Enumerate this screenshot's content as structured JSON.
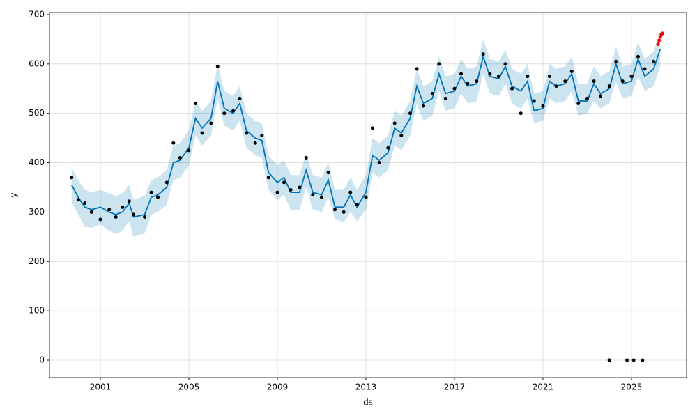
{
  "chart_data": {
    "type": "forecast",
    "xlabel": "ds",
    "ylabel": "y",
    "xlim": [
      1998.7,
      2027.49
    ],
    "ylim": [
      -35.3,
      704.2
    ],
    "xticks": [
      2001,
      2005,
      2009,
      2013,
      2017,
      2021,
      2025
    ],
    "yticks": [
      0,
      100,
      200,
      300,
      400,
      500,
      600,
      700
    ],
    "grid": true,
    "x": [
      1999.7,
      2000.0,
      2000.3,
      2000.6,
      2001.0,
      2001.4,
      2001.7,
      2002.0,
      2002.3,
      2002.5,
      2003.0,
      2003.3,
      2003.6,
      2004.0,
      2004.3,
      2004.6,
      2005.0,
      2005.3,
      2005.6,
      2006.0,
      2006.3,
      2006.6,
      2007.0,
      2007.3,
      2007.6,
      2008.0,
      2008.3,
      2008.6,
      2009.0,
      2009.3,
      2009.6,
      2010.0,
      2010.3,
      2010.6,
      2011.0,
      2011.3,
      2011.6,
      2012.0,
      2012.3,
      2012.6,
      2013.0,
      2013.3,
      2013.6,
      2014.0,
      2014.3,
      2014.6,
      2015.0,
      2015.3,
      2015.6,
      2016.0,
      2016.3,
      2016.6,
      2017.0,
      2017.3,
      2017.6,
      2018.0,
      2018.3,
      2018.6,
      2019.0,
      2019.3,
      2019.6,
      2020.0,
      2020.3,
      2020.6,
      2021.0,
      2021.3,
      2021.6,
      2022.0,
      2022.3,
      2022.6,
      2023.0,
      2023.3,
      2023.6,
      2024.0,
      2024.3,
      2024.6,
      2025.0,
      2025.3,
      2025.6,
      2026.0,
      2026.3
    ],
    "forecast": {
      "color": "#0072B2",
      "values": [
        355,
        330,
        310,
        305,
        310,
        300,
        295,
        300,
        318,
        290,
        295,
        330,
        335,
        350,
        400,
        405,
        430,
        490,
        470,
        490,
        565,
        510,
        500,
        520,
        465,
        450,
        445,
        380,
        360,
        370,
        340,
        340,
        385,
        340,
        335,
        365,
        310,
        310,
        335,
        310,
        340,
        415,
        405,
        420,
        470,
        460,
        490,
        555,
        520,
        530,
        580,
        540,
        545,
        575,
        555,
        560,
        615,
        575,
        570,
        595,
        555,
        545,
        565,
        505,
        510,
        565,
        555,
        560,
        580,
        525,
        525,
        560,
        540,
        550,
        600,
        560,
        565,
        610,
        575,
        590,
        630
      ]
    },
    "interval": {
      "color": "#0072B2",
      "lower": [
        320,
        295,
        270,
        268,
        275,
        262,
        255,
        262,
        282,
        250,
        257,
        295,
        300,
        315,
        365,
        370,
        395,
        455,
        435,
        455,
        530,
        475,
        465,
        485,
        430,
        415,
        410,
        345,
        325,
        335,
        305,
        305,
        350,
        305,
        300,
        330,
        285,
        280,
        300,
        282,
        305,
        380,
        370,
        385,
        435,
        425,
        455,
        520,
        485,
        495,
        545,
        505,
        510,
        540,
        520,
        525,
        580,
        540,
        535,
        560,
        520,
        510,
        530,
        480,
        485,
        530,
        520,
        525,
        545,
        495,
        500,
        525,
        510,
        520,
        565,
        530,
        535,
        575,
        545,
        555,
        595
      ],
      "upper": [
        390,
        365,
        345,
        340,
        345,
        338,
        332,
        338,
        355,
        325,
        333,
        365,
        370,
        385,
        435,
        440,
        465,
        525,
        505,
        525,
        600,
        545,
        535,
        555,
        500,
        485,
        480,
        415,
        395,
        405,
        375,
        375,
        420,
        375,
        370,
        400,
        345,
        345,
        370,
        345,
        375,
        450,
        440,
        455,
        505,
        495,
        525,
        590,
        555,
        565,
        615,
        575,
        580,
        610,
        590,
        595,
        650,
        610,
        605,
        630,
        590,
        580,
        600,
        540,
        545,
        600,
        590,
        595,
        615,
        560,
        560,
        595,
        575,
        585,
        635,
        595,
        600,
        645,
        610,
        625,
        665
      ]
    },
    "observed": {
      "color": "#000000",
      "x": [
        1999.7,
        2000.0,
        2000.3,
        2000.6,
        2001.0,
        2001.4,
        2001.7,
        2002.0,
        2002.3,
        2002.5,
        2003.0,
        2003.3,
        2003.6,
        2004.0,
        2004.3,
        2004.6,
        2005.0,
        2005.3,
        2005.6,
        2006.0,
        2006.3,
        2006.6,
        2007.0,
        2007.3,
        2007.6,
        2008.0,
        2008.3,
        2008.6,
        2009.0,
        2009.3,
        2009.6,
        2010.0,
        2010.3,
        2010.6,
        2011.0,
        2011.3,
        2011.6,
        2012.0,
        2012.3,
        2012.6,
        2013.0,
        2013.3,
        2013.6,
        2014.0,
        2014.3,
        2014.6,
        2015.0,
        2015.3,
        2015.6,
        2016.0,
        2016.3,
        2016.6,
        2017.0,
        2017.3,
        2017.6,
        2018.0,
        2018.3,
        2018.6,
        2019.0,
        2019.3,
        2019.6,
        2020.0,
        2020.3,
        2020.6,
        2021.0,
        2021.3,
        2021.6,
        2022.0,
        2022.3,
        2022.6,
        2023.0,
        2023.3,
        2023.6,
        2024.0,
        2024.3,
        2024.6,
        2025.0,
        2025.3,
        2025.6,
        2026.0,
        2024.0,
        2024.8,
        2025.1,
        2025.5
      ],
      "values": [
        370,
        325,
        318,
        300,
        285,
        305,
        290,
        310,
        322,
        295,
        290,
        340,
        330,
        360,
        440,
        410,
        425,
        520,
        460,
        480,
        595,
        500,
        505,
        530,
        460,
        440,
        455,
        370,
        340,
        360,
        345,
        350,
        410,
        335,
        330,
        380,
        305,
        300,
        340,
        315,
        330,
        470,
        400,
        430,
        480,
        455,
        500,
        590,
        515,
        540,
        600,
        530,
        550,
        580,
        560,
        565,
        620,
        580,
        575,
        600,
        550,
        500,
        575,
        525,
        515,
        575,
        555,
        565,
        585,
        520,
        530,
        565,
        535,
        555,
        605,
        565,
        575,
        615,
        590,
        605,
        0,
        0,
        0,
        0
      ]
    },
    "highlighted": {
      "color": "#ff0000",
      "x": [
        2026.2,
        2026.25,
        2026.3,
        2026.35,
        2026.4
      ],
      "values": [
        640,
        648,
        655,
        660,
        662
      ]
    }
  }
}
